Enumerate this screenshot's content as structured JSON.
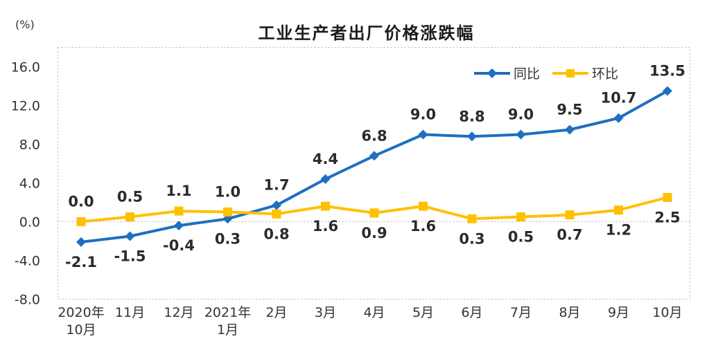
{
  "chart_data": {
    "type": "line",
    "title": "工业生产者出厂价格涨跌幅",
    "unit_label": "(%)",
    "categories": [
      "2020年\n10月",
      "11月",
      "12月",
      "2021年\n1月",
      "2月",
      "3月",
      "4月",
      "5月",
      "6月",
      "7月",
      "8月",
      "9月",
      "10月"
    ],
    "series": [
      {
        "name": "同比",
        "color": "#1e6fc0",
        "marker": "diamond",
        "values": [
          -2.1,
          -1.5,
          -0.4,
          0.3,
          1.7,
          4.4,
          6.8,
          9.0,
          8.8,
          9.0,
          9.5,
          10.7,
          13.5
        ]
      },
      {
        "name": "环比",
        "color": "#ffc000",
        "marker": "square",
        "values": [
          0.0,
          0.5,
          1.1,
          1.0,
          0.8,
          1.6,
          0.9,
          1.6,
          0.3,
          0.5,
          0.7,
          1.2,
          2.5
        ]
      }
    ],
    "y_axis": {
      "ticks": [
        16.0,
        12.0,
        8.0,
        4.0,
        0.0,
        -4.0,
        -8.0
      ],
      "min": -8.0,
      "max": 18.0,
      "zero_line": true
    },
    "legend_position": "top-right",
    "grid": "zero-line-only",
    "border_color": "#b5b5b5"
  }
}
